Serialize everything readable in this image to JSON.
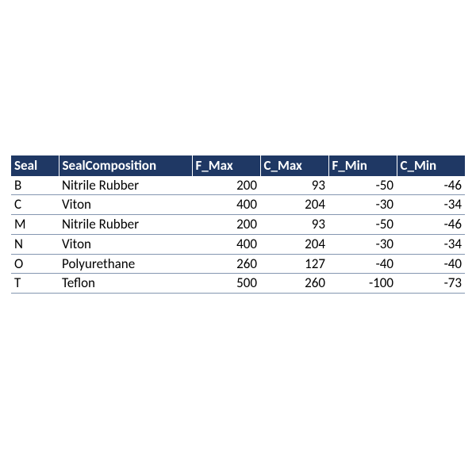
{
  "table": {
    "header_bg": "#1f3864",
    "header_fg": "#ffffff",
    "row_border_color": "#8496b0",
    "text_color": "#000000",
    "font_family": "Calibri, Arial, sans-serif",
    "header_fontsize": 17,
    "cell_fontsize": 17,
    "columns": [
      {
        "key": "seal",
        "label": "Seal",
        "width": 60,
        "align": "left"
      },
      {
        "key": "comp",
        "label": "SealComposition",
        "width": 168,
        "align": "left"
      },
      {
        "key": "fmax",
        "label": "F_Max",
        "width": 86,
        "align": "right"
      },
      {
        "key": "cmax",
        "label": "C_Max",
        "width": 86,
        "align": "right"
      },
      {
        "key": "fmin",
        "label": "F_Min",
        "width": 86,
        "align": "right"
      },
      {
        "key": "cmin",
        "label": "C_Min",
        "width": 86,
        "align": "right"
      }
    ],
    "rows": [
      {
        "seal": "B",
        "comp": "Nitrile Rubber",
        "fmax": 200,
        "cmax": 93,
        "fmin": -50,
        "cmin": -46
      },
      {
        "seal": "C",
        "comp": "Viton",
        "fmax": 400,
        "cmax": 204,
        "fmin": -30,
        "cmin": -34
      },
      {
        "seal": "M",
        "comp": "Nitrile Rubber",
        "fmax": 200,
        "cmax": 93,
        "fmin": -50,
        "cmin": -46
      },
      {
        "seal": "N",
        "comp": "Viton",
        "fmax": 400,
        "cmax": 204,
        "fmin": -30,
        "cmin": -34
      },
      {
        "seal": "O",
        "comp": "Polyurethane",
        "fmax": 260,
        "cmax": 127,
        "fmin": -40,
        "cmin": -40
      },
      {
        "seal": "T",
        "comp": "Teflon",
        "fmax": 500,
        "cmax": 260,
        "fmin": -100,
        "cmin": -73
      }
    ]
  }
}
